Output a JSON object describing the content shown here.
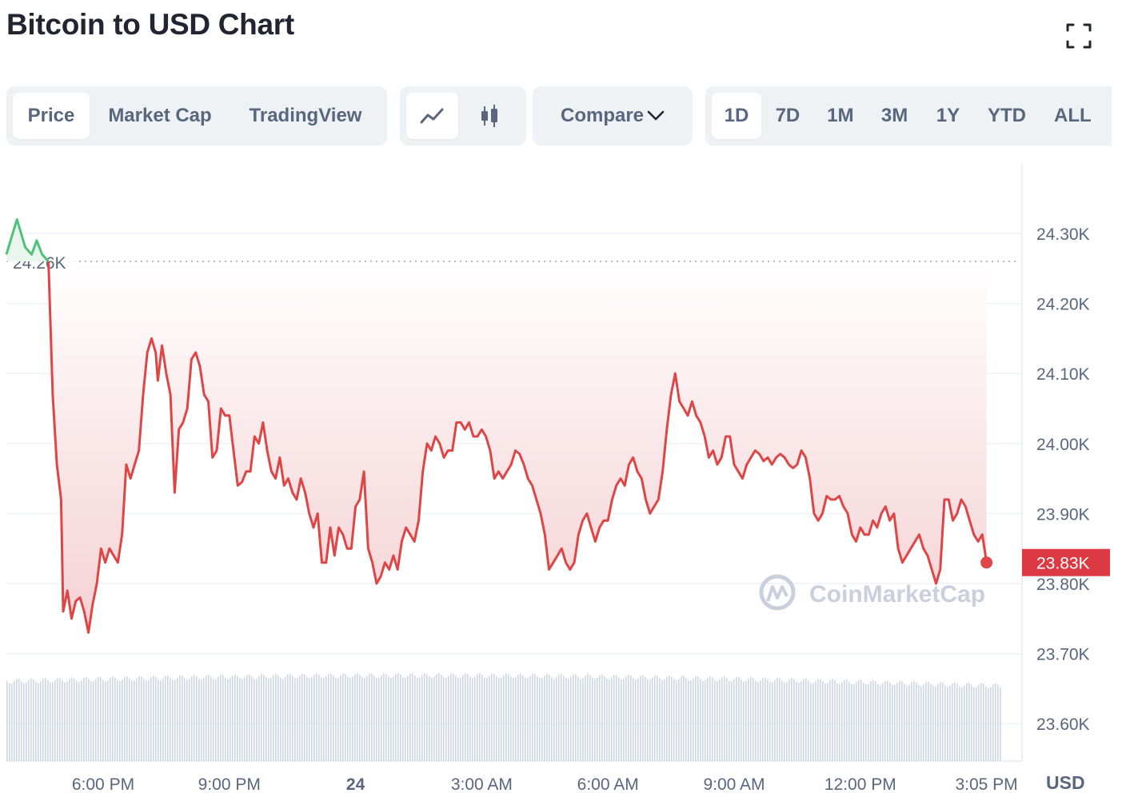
{
  "page": {
    "title": "Bitcoin to USD Chart"
  },
  "toolbar": {
    "view_tabs": [
      "Price",
      "Market Cap",
      "TradingView"
    ],
    "active_view": "Price",
    "chart_types": [
      "line-chart-icon",
      "candlestick-icon"
    ],
    "active_chart_type": "line-chart-icon",
    "compare_label": "Compare v",
    "range_tabs": [
      "1D",
      "7D",
      "1M",
      "3M",
      "1Y",
      "YTD",
      "ALL"
    ],
    "active_range": "1D"
  },
  "colors": {
    "line_down": "#e04545",
    "line_up": "#4ec27a",
    "fill_top": "#f7d7d9",
    "volume": "#cfd6e4",
    "grid": "#eff2f5",
    "axis_text": "#58667e",
    "price_badge": "#dc3a43",
    "watermark": "#c9cfdc"
  },
  "watermark": "CoinMarketCap",
  "currency_label": "USD",
  "chart_data": {
    "type": "line",
    "title": "Bitcoin to USD Chart",
    "y_unit": "USD",
    "ylim": [
      23550,
      24370
    ],
    "y_ticks": [
      {
        "value": 24300,
        "label": "24.30K"
      },
      {
        "value": 24200,
        "label": "24.20K"
      },
      {
        "value": 24100,
        "label": "24.10K"
      },
      {
        "value": 24000,
        "label": "24.00K"
      },
      {
        "value": 23900,
        "label": "23.90K"
      },
      {
        "value": 23800,
        "label": "23.80K"
      },
      {
        "value": 23700,
        "label": "23.70K"
      },
      {
        "value": 23600,
        "label": "23.60K"
      }
    ],
    "x_range_hours": [
      15.7,
      39.35
    ],
    "x_ticks": [
      {
        "value": 18,
        "label": "6:00 PM",
        "bold": false
      },
      {
        "value": 21,
        "label": "9:00 PM",
        "bold": false
      },
      {
        "value": 24,
        "label": "24",
        "bold": true
      },
      {
        "value": 27,
        "label": "3:00 AM",
        "bold": false
      },
      {
        "value": 30,
        "label": "6:00 AM",
        "bold": false
      },
      {
        "value": 33,
        "label": "9:00 AM",
        "bold": false
      },
      {
        "value": 36,
        "label": "12:00 PM",
        "bold": false
      },
      {
        "value": 39,
        "label": "3:05 PM",
        "bold": false
      }
    ],
    "reference_price": {
      "value": 24260,
      "label": "24.26K"
    },
    "current_price": {
      "value": 23830,
      "label": "23.83K"
    },
    "grid": true,
    "legend": "none",
    "series": [
      {
        "values_above_reference": [
          [
            15.7,
            24270
          ],
          [
            15.85,
            24300
          ],
          [
            15.95,
            24320
          ],
          [
            16.05,
            24300
          ],
          [
            16.15,
            24280
          ],
          [
            16.3,
            24270
          ],
          [
            16.42,
            24290
          ],
          [
            16.55,
            24270
          ],
          [
            16.7,
            24260
          ]
        ],
        "values": [
          [
            16.7,
            24260
          ],
          [
            16.8,
            24070
          ],
          [
            16.9,
            23970
          ],
          [
            17.0,
            23920
          ],
          [
            17.05,
            23760
          ],
          [
            17.15,
            23790
          ],
          [
            17.25,
            23750
          ],
          [
            17.35,
            23775
          ],
          [
            17.45,
            23780
          ],
          [
            17.55,
            23760
          ],
          [
            17.65,
            23730
          ],
          [
            17.75,
            23770
          ],
          [
            17.85,
            23800
          ],
          [
            17.95,
            23850
          ],
          [
            18.05,
            23830
          ],
          [
            18.15,
            23850
          ],
          [
            18.25,
            23840
          ],
          [
            18.35,
            23830
          ],
          [
            18.45,
            23870
          ],
          [
            18.55,
            23970
          ],
          [
            18.65,
            23950
          ],
          [
            18.75,
            23970
          ],
          [
            18.85,
            23990
          ],
          [
            18.95,
            24070
          ],
          [
            19.05,
            24130
          ],
          [
            19.15,
            24150
          ],
          [
            19.25,
            24130
          ],
          [
            19.3,
            24090
          ],
          [
            19.4,
            24140
          ],
          [
            19.5,
            24100
          ],
          [
            19.6,
            24070
          ],
          [
            19.7,
            23930
          ],
          [
            19.8,
            24020
          ],
          [
            19.9,
            24030
          ],
          [
            20.0,
            24050
          ],
          [
            20.1,
            24120
          ],
          [
            20.2,
            24130
          ],
          [
            20.3,
            24110
          ],
          [
            20.4,
            24070
          ],
          [
            20.5,
            24060
          ],
          [
            20.6,
            23980
          ],
          [
            20.7,
            23990
          ],
          [
            20.8,
            24050
          ],
          [
            20.9,
            24040
          ],
          [
            21.0,
            24040
          ],
          [
            21.1,
            23990
          ],
          [
            21.2,
            23940
          ],
          [
            21.3,
            23945
          ],
          [
            21.4,
            23960
          ],
          [
            21.5,
            23960
          ],
          [
            21.6,
            24010
          ],
          [
            21.7,
            24000
          ],
          [
            21.8,
            24030
          ],
          [
            21.9,
            23990
          ],
          [
            22.0,
            23960
          ],
          [
            22.1,
            23950
          ],
          [
            22.2,
            23980
          ],
          [
            22.3,
            23940
          ],
          [
            22.4,
            23950
          ],
          [
            22.5,
            23930
          ],
          [
            22.6,
            23920
          ],
          [
            22.7,
            23950
          ],
          [
            22.8,
            23930
          ],
          [
            22.9,
            23900
          ],
          [
            23.0,
            23880
          ],
          [
            23.1,
            23900
          ],
          [
            23.2,
            23830
          ],
          [
            23.3,
            23830
          ],
          [
            23.4,
            23880
          ],
          [
            23.5,
            23840
          ],
          [
            23.6,
            23880
          ],
          [
            23.7,
            23870
          ],
          [
            23.8,
            23850
          ],
          [
            23.9,
            23850
          ],
          [
            24.0,
            23910
          ],
          [
            24.1,
            23920
          ],
          [
            24.2,
            23960
          ],
          [
            24.3,
            23850
          ],
          [
            24.4,
            23830
          ],
          [
            24.5,
            23800
          ],
          [
            24.6,
            23810
          ],
          [
            24.7,
            23830
          ],
          [
            24.8,
            23820
          ],
          [
            24.9,
            23840
          ],
          [
            25.0,
            23820
          ],
          [
            25.1,
            23860
          ],
          [
            25.2,
            23880
          ],
          [
            25.3,
            23870
          ],
          [
            25.4,
            23860
          ],
          [
            25.5,
            23890
          ],
          [
            25.6,
            23960
          ],
          [
            25.7,
            24000
          ],
          [
            25.8,
            23990
          ],
          [
            25.9,
            24010
          ],
          [
            26.0,
            24000
          ],
          [
            26.1,
            23980
          ],
          [
            26.2,
            23990
          ],
          [
            26.3,
            23990
          ],
          [
            26.4,
            24030
          ],
          [
            26.5,
            24030
          ],
          [
            26.6,
            24020
          ],
          [
            26.7,
            24030
          ],
          [
            26.8,
            24010
          ],
          [
            26.9,
            24010
          ],
          [
            27.0,
            24020
          ],
          [
            27.1,
            24010
          ],
          [
            27.2,
            23990
          ],
          [
            27.3,
            23950
          ],
          [
            27.4,
            23960
          ],
          [
            27.5,
            23950
          ],
          [
            27.6,
            23960
          ],
          [
            27.7,
            23970
          ],
          [
            27.8,
            23990
          ],
          [
            27.9,
            23985
          ],
          [
            28.0,
            23970
          ],
          [
            28.1,
            23950
          ],
          [
            28.2,
            23940
          ],
          [
            28.3,
            23920
          ],
          [
            28.4,
            23900
          ],
          [
            28.5,
            23870
          ],
          [
            28.6,
            23820
          ],
          [
            28.7,
            23830
          ],
          [
            28.8,
            23840
          ],
          [
            28.9,
            23850
          ],
          [
            29.0,
            23830
          ],
          [
            29.1,
            23820
          ],
          [
            29.2,
            23830
          ],
          [
            29.3,
            23870
          ],
          [
            29.4,
            23890
          ],
          [
            29.5,
            23900
          ],
          [
            29.6,
            23880
          ],
          [
            29.7,
            23860
          ],
          [
            29.8,
            23880
          ],
          [
            29.9,
            23890
          ],
          [
            30.0,
            23890
          ],
          [
            30.1,
            23920
          ],
          [
            30.2,
            23940
          ],
          [
            30.3,
            23950
          ],
          [
            30.4,
            23940
          ],
          [
            30.5,
            23970
          ],
          [
            30.6,
            23980
          ],
          [
            30.7,
            23960
          ],
          [
            30.8,
            23950
          ],
          [
            30.9,
            23920
          ],
          [
            31.0,
            23900
          ],
          [
            31.1,
            23910
          ],
          [
            31.2,
            23920
          ],
          [
            31.3,
            23960
          ],
          [
            31.4,
            24020
          ],
          [
            31.5,
            24070
          ],
          [
            31.6,
            24100
          ],
          [
            31.7,
            24060
          ],
          [
            31.8,
            24050
          ],
          [
            31.9,
            24040
          ],
          [
            32.0,
            24060
          ],
          [
            32.1,
            24040
          ],
          [
            32.2,
            24030
          ],
          [
            32.3,
            24010
          ],
          [
            32.4,
            23980
          ],
          [
            32.5,
            23990
          ],
          [
            32.6,
            23970
          ],
          [
            32.7,
            23980
          ],
          [
            32.8,
            24010
          ],
          [
            32.9,
            24010
          ],
          [
            33.0,
            23970
          ],
          [
            33.1,
            23960
          ],
          [
            33.2,
            23950
          ],
          [
            33.3,
            23970
          ],
          [
            33.4,
            23980
          ],
          [
            33.5,
            23990
          ],
          [
            33.6,
            23985
          ],
          [
            33.7,
            23975
          ],
          [
            33.8,
            23980
          ],
          [
            33.9,
            23970
          ],
          [
            34.0,
            23980
          ],
          [
            34.1,
            23985
          ],
          [
            34.2,
            23980
          ],
          [
            34.3,
            23970
          ],
          [
            34.4,
            23965
          ],
          [
            34.5,
            23970
          ],
          [
            34.6,
            23990
          ],
          [
            34.7,
            23980
          ],
          [
            34.8,
            23950
          ],
          [
            34.9,
            23900
          ],
          [
            35.0,
            23890
          ],
          [
            35.1,
            23900
          ],
          [
            35.2,
            23925
          ],
          [
            35.3,
            23920
          ],
          [
            35.4,
            23920
          ],
          [
            35.5,
            23925
          ],
          [
            35.6,
            23910
          ],
          [
            35.7,
            23900
          ],
          [
            35.8,
            23870
          ],
          [
            35.9,
            23860
          ],
          [
            36.0,
            23880
          ],
          [
            36.1,
            23870
          ],
          [
            36.2,
            23870
          ],
          [
            36.3,
            23890
          ],
          [
            36.4,
            23880
          ],
          [
            36.5,
            23900
          ],
          [
            36.6,
            23910
          ],
          [
            36.7,
            23890
          ],
          [
            36.8,
            23900
          ],
          [
            36.9,
            23850
          ],
          [
            37.0,
            23830
          ],
          [
            37.1,
            23840
          ],
          [
            37.2,
            23850
          ],
          [
            37.3,
            23860
          ],
          [
            37.4,
            23870
          ],
          [
            37.5,
            23850
          ],
          [
            37.6,
            23840
          ],
          [
            37.7,
            23820
          ],
          [
            37.8,
            23800
          ],
          [
            37.9,
            23820
          ],
          [
            38.0,
            23920
          ],
          [
            38.1,
            23920
          ],
          [
            38.2,
            23890
          ],
          [
            38.3,
            23900
          ],
          [
            38.4,
            23920
          ],
          [
            38.5,
            23910
          ],
          [
            38.6,
            23890
          ],
          [
            38.7,
            23870
          ],
          [
            38.8,
            23860
          ],
          [
            38.9,
            23870
          ],
          [
            39.0,
            23830
          ]
        ]
      }
    ]
  }
}
